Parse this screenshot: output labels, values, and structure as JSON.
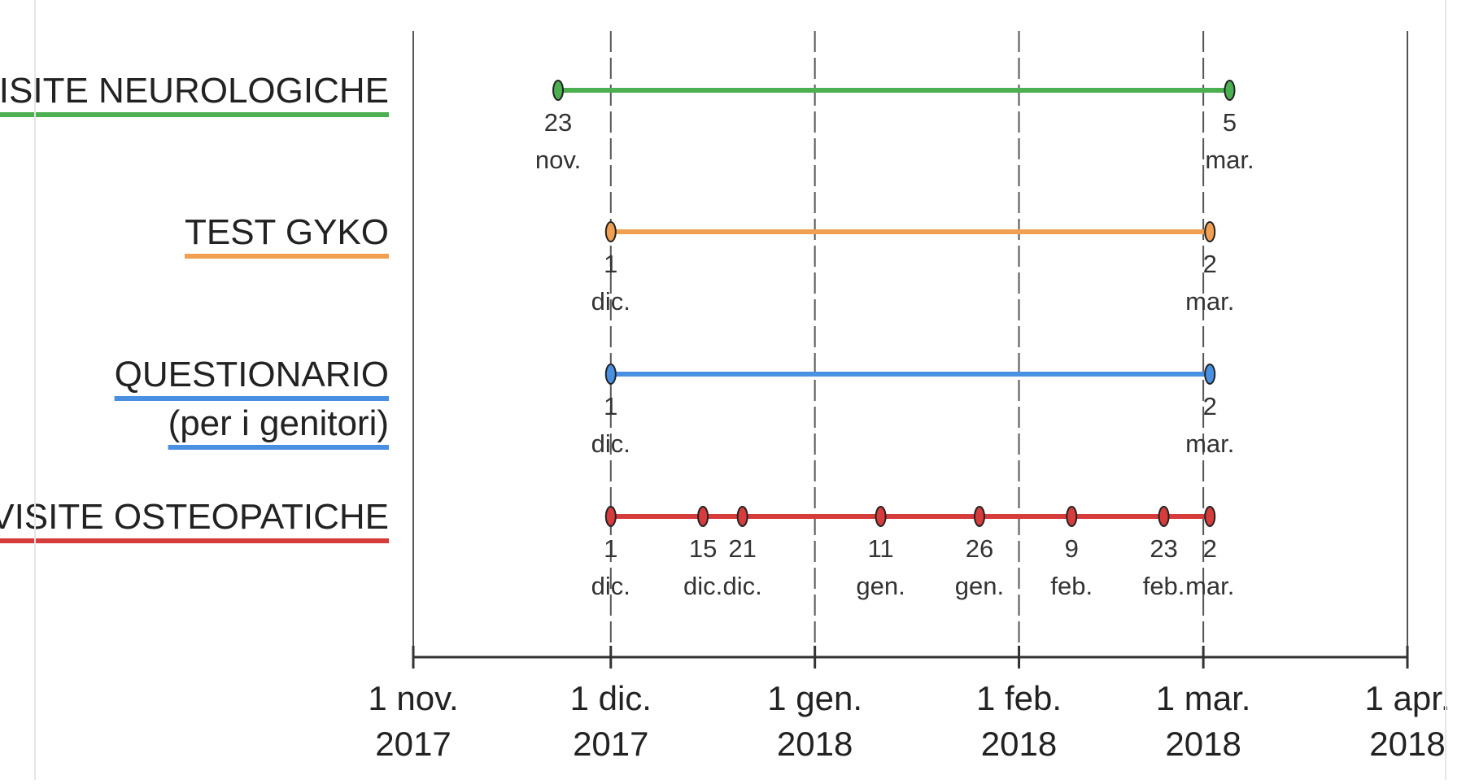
{
  "chart_data": {
    "type": "timeline",
    "x_axis": {
      "ticks": [
        {
          "date": "2017-11-01",
          "line1": "1 nov.",
          "line2": "2017"
        },
        {
          "date": "2017-12-01",
          "line1": "1 dic.",
          "line2": "2017"
        },
        {
          "date": "2018-01-01",
          "line1": "1 gen.",
          "line2": "2018"
        },
        {
          "date": "2018-02-01",
          "line1": "1 feb.",
          "line2": "2018"
        },
        {
          "date": "2018-03-01",
          "line1": "1 mar.",
          "line2": "2018"
        },
        {
          "date": "2018-04-01",
          "line1": "1 apr.",
          "line2": "2018"
        }
      ],
      "range": [
        "2017-11-01",
        "2018-04-01"
      ],
      "grid": true
    },
    "series": [
      {
        "name": "VISITE NEUROLOGICHE",
        "subtitle": "",
        "color": "#4caf50",
        "points": [
          {
            "date": "2017-11-23",
            "day": "23",
            "month": "nov."
          },
          {
            "date": "2018-03-05",
            "day": "5",
            "month": "mar."
          }
        ]
      },
      {
        "name": "TEST GYKO",
        "subtitle": "",
        "color": "#f0a050",
        "points": [
          {
            "date": "2017-12-01",
            "day": "1",
            "month": "dic."
          },
          {
            "date": "2018-03-02",
            "day": "2",
            "month": "mar."
          }
        ]
      },
      {
        "name": "QUESTIONARIO",
        "subtitle": "(per i genitori)",
        "color": "#4a90e2",
        "points": [
          {
            "date": "2017-12-01",
            "day": "1",
            "month": "dic."
          },
          {
            "date": "2018-03-02",
            "day": "2",
            "month": "mar."
          }
        ]
      },
      {
        "name": "VISITE OSTEOPATICHE",
        "subtitle": "",
        "color": "#d63c3c",
        "points": [
          {
            "date": "2017-12-01",
            "day": "1",
            "month": "dic."
          },
          {
            "date": "2017-12-15",
            "day": "15",
            "month": "dic."
          },
          {
            "date": "2017-12-21",
            "day": "21",
            "month": "dic."
          },
          {
            "date": "2018-01-11",
            "day": "11",
            "month": "gen."
          },
          {
            "date": "2018-01-26",
            "day": "26",
            "month": "gen."
          },
          {
            "date": "2018-02-09",
            "day": "9",
            "month": "feb."
          },
          {
            "date": "2018-02-23",
            "day": "23",
            "month": "feb."
          },
          {
            "date": "2018-03-02",
            "day": "2",
            "month": "mar."
          }
        ]
      }
    ]
  }
}
